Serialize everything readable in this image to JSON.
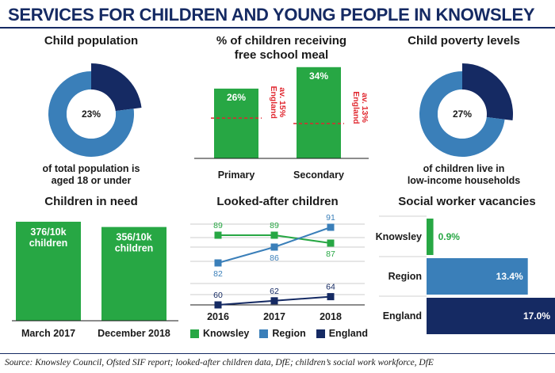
{
  "title": "SERVICES FOR CHILDREN AND YOUNG PEOPLE IN KNOWSLEY",
  "source": "Source: Knowsley Council, Ofsted SIF report; looked-after children data, DfE; children’s social work workforce, DfE",
  "colors": {
    "navy": "#152a63",
    "mid_blue": "#3a7fb9",
    "green": "#27a744",
    "red": "#e0262e",
    "grid": "#bdbdbd"
  },
  "panels": {
    "child_population": {
      "title": "Child population",
      "caption_line1": "of total population is",
      "caption_line2": "aged 18 or under"
    },
    "free_school_meal": {
      "title_line1": "% of children receiving",
      "title_line2": "free school meal"
    },
    "child_poverty": {
      "title": "Child poverty levels",
      "caption_line1": "of children live in",
      "caption_line2": "low-income households"
    },
    "children_in_need": {
      "title": "Children in need"
    },
    "looked_after": {
      "title": "Looked-after children"
    },
    "social_worker": {
      "title": "Social worker vacancies"
    }
  },
  "chart_data": [
    {
      "id": "child_population",
      "type": "pie",
      "slices": [
        {
          "label": "23%",
          "value": 23,
          "color": "#152a63"
        },
        {
          "label": "",
          "value": 77,
          "color": "#3a7fb9"
        }
      ]
    },
    {
      "id": "free_school_meal",
      "type": "bar",
      "categories": [
        "Primary",
        "Secondary"
      ],
      "values": [
        26,
        34
      ],
      "data_labels": [
        "26%",
        "34%"
      ],
      "reference": [
        {
          "line1": "England",
          "line2": "av. 15%",
          "value": 15
        },
        {
          "line1": "England",
          "line2": "av. 13%",
          "value": 13
        }
      ],
      "ylim": [
        0,
        36
      ]
    },
    {
      "id": "child_poverty",
      "type": "pie",
      "slices": [
        {
          "label": "27%",
          "value": 27,
          "color": "#152a63"
        },
        {
          "label": "",
          "value": 73,
          "color": "#3a7fb9"
        }
      ]
    },
    {
      "id": "children_in_need",
      "type": "bar",
      "categories": [
        "March 2017",
        "December 2018"
      ],
      "values": [
        376,
        356
      ],
      "data_labels_line1": [
        "376/10k",
        "356/10k"
      ],
      "data_labels_line2": [
        "children",
        "children"
      ],
      "ylim": [
        0,
        400
      ]
    },
    {
      "id": "looked_after",
      "type": "line",
      "x": [
        "2016",
        "2017",
        "2018"
      ],
      "series": [
        {
          "name": "Knowsley",
          "values": [
            89,
            89,
            87
          ],
          "labels": [
            "89",
            "89",
            "87"
          ],
          "color": "#27a744"
        },
        {
          "name": "Region",
          "values": [
            82,
            86,
            91
          ],
          "labels": [
            "82",
            "86",
            "91"
          ],
          "color": "#3a7fb9"
        },
        {
          "name": "England",
          "values": [
            60,
            62,
            64
          ],
          "labels": [
            "60",
            "62",
            "64"
          ],
          "color": "#152a63"
        }
      ],
      "grid": true
    },
    {
      "id": "social_worker",
      "type": "bar",
      "orientation": "horizontal",
      "categories": [
        "Knowsley",
        "Region",
        "England"
      ],
      "values": [
        0.9,
        13.4,
        17.0
      ],
      "data_labels": [
        "0.9%",
        "13.4%",
        "17.0%"
      ],
      "colors": [
        "#27a744",
        "#3a7fb9",
        "#152a63"
      ],
      "xlim": [
        0,
        17.0
      ]
    }
  ]
}
